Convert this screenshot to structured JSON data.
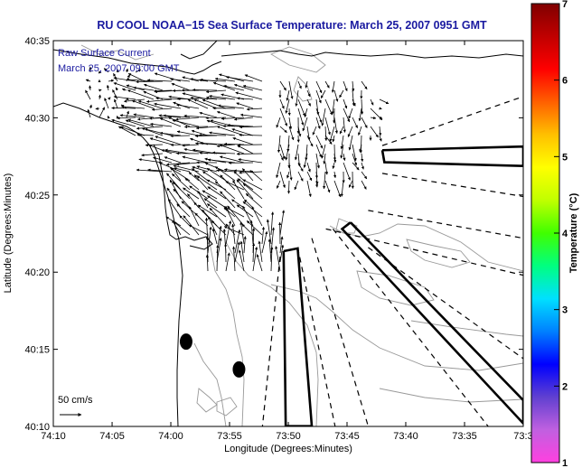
{
  "chart_data": {
    "type": "vector-field map",
    "title": "RU COOL  NOAA−15  Sea Surface Temperature:  March 25, 2007 0951 GMT",
    "legend": {
      "line1": "Raw Surface Current",
      "line2": "March 25, 2007 09:00 GMT"
    },
    "scale_label": "50 cm/s",
    "xlabel": "Longitude (Degrees:Minutes)",
    "ylabel": "Latitude (Degrees:Minutes)",
    "xlim": [
      -74.1667,
      -73.5
    ],
    "ylim": [
      40.1667,
      40.5833
    ],
    "x_ticks": [
      {
        "value": -74.1667,
        "label": "74:10"
      },
      {
        "value": -74.0833,
        "label": "74:05"
      },
      {
        "value": -74.0,
        "label": "74:00"
      },
      {
        "value": -73.9167,
        "label": "73:55"
      },
      {
        "value": -73.8333,
        "label": "73:50"
      },
      {
        "value": -73.75,
        "label": "73:45"
      },
      {
        "value": -73.6667,
        "label": "73:40"
      },
      {
        "value": -73.5833,
        "label": "73:35"
      },
      {
        "value": -73.5,
        "label": "73:3"
      }
    ],
    "y_ticks": [
      {
        "value": 40.1667,
        "label": "40:10"
      },
      {
        "value": 40.25,
        "label": "40:15"
      },
      {
        "value": 40.3333,
        "label": "40:20"
      },
      {
        "value": 40.4167,
        "label": "40:25"
      },
      {
        "value": 40.5,
        "label": "40:30"
      },
      {
        "value": 40.5833,
        "label": "40:35"
      }
    ],
    "colorbar": {
      "label": "Temperature (°C)",
      "ticks": [
        "1",
        "2",
        "3",
        "4",
        "5",
        "6",
        "7"
      ],
      "range": [
        1,
        7
      ],
      "colors": [
        "#ff40e0",
        "#c060e0",
        "#6040d0",
        "#0000ff",
        "#0080ff",
        "#00e0ff",
        "#00ff80",
        "#40ff00",
        "#c0ff00",
        "#ffff00",
        "#ffc000",
        "#ff6000",
        "#ff0000",
        "#c00000",
        "#800000"
      ]
    },
    "colors": {
      "title": "#1a1aa0",
      "vectors": "#000000",
      "coast": "#000000",
      "contour": "#999999"
    },
    "markers": [
      {
        "lon": -73.9783,
        "lat": 40.2583,
        "shape": "ellipse"
      },
      {
        "lon": -73.9033,
        "lat": 40.2283,
        "shape": "ellipse"
      }
    ],
    "shipping_lanes": [
      {
        "type": "solid",
        "points": [
          [
            -73.7,
            40.465
          ],
          [
            -73.5,
            40.469
          ],
          [
            -73.5,
            40.448
          ],
          [
            -73.697,
            40.452
          ],
          [
            -73.7,
            40.465
          ]
        ]
      },
      {
        "type": "solid",
        "points": [
          [
            -73.745,
            40.387
          ],
          [
            -73.5,
            40.195
          ],
          [
            -73.5,
            40.17
          ],
          [
            -73.757,
            40.38
          ],
          [
            -73.745,
            40.387
          ]
        ]
      },
      {
        "type": "solid",
        "points": [
          [
            -73.84,
            40.356
          ],
          [
            -73.82,
            40.359
          ],
          [
            -73.8,
            40.167
          ],
          [
            -73.837,
            40.167
          ],
          [
            -73.84,
            40.356
          ]
        ]
      },
      {
        "type": "dashed",
        "points": [
          [
            -73.7,
            40.47
          ],
          [
            -73.5,
            40.523
          ]
        ]
      },
      {
        "type": "dashed",
        "points": [
          [
            -73.7,
            40.44
          ],
          [
            -73.5,
            40.415
          ]
        ]
      },
      {
        "type": "dashed",
        "points": [
          [
            -73.72,
            40.4
          ],
          [
            -73.5,
            40.37
          ]
        ]
      },
      {
        "type": "dashed",
        "points": [
          [
            -73.78,
            40.38
          ],
          [
            -73.5,
            40.33
          ]
        ]
      },
      {
        "type": "dashed",
        "points": [
          [
            -73.72,
            40.36
          ],
          [
            -73.5,
            40.24
          ]
        ]
      },
      {
        "type": "dashed",
        "points": [
          [
            -73.77,
            40.38
          ],
          [
            -73.55,
            40.167
          ]
        ]
      },
      {
        "type": "dashed",
        "points": [
          [
            -73.8,
            40.37
          ],
          [
            -73.72,
            40.167
          ]
        ]
      },
      {
        "type": "dashed",
        "points": [
          [
            -73.82,
            40.36
          ],
          [
            -73.767,
            40.167
          ]
        ]
      },
      {
        "type": "dashed",
        "points": [
          [
            -73.845,
            40.35
          ],
          [
            -73.87,
            40.167
          ]
        ]
      }
    ],
    "vector_regions": [
      {
        "lon": [
          -74.06,
          -73.87
        ],
        "lat": [
          40.44,
          40.54
        ],
        "u": -0.9,
        "v": 0.15
      },
      {
        "lon": [
          -73.99,
          -73.86
        ],
        "lat": [
          40.37,
          40.44
        ],
        "u": -0.6,
        "v": 0.6
      },
      {
        "lon": [
          -73.95,
          -73.84
        ],
        "lat": [
          40.33,
          40.38
        ],
        "u": 0.0,
        "v": 0.9
      },
      {
        "lon": [
          -73.85,
          -73.72
        ],
        "lat": [
          40.43,
          40.54
        ],
        "u": 0.05,
        "v": -0.5
      },
      {
        "lon": [
          -73.76,
          -73.7
        ],
        "lat": [
          40.48,
          40.52
        ],
        "u": 0.25,
        "v": -0.25
      },
      {
        "lon": [
          -74.12,
          -74.05
        ],
        "lat": [
          40.5,
          40.55
        ],
        "u": 0.0,
        "v": 0.2
      }
    ]
  }
}
